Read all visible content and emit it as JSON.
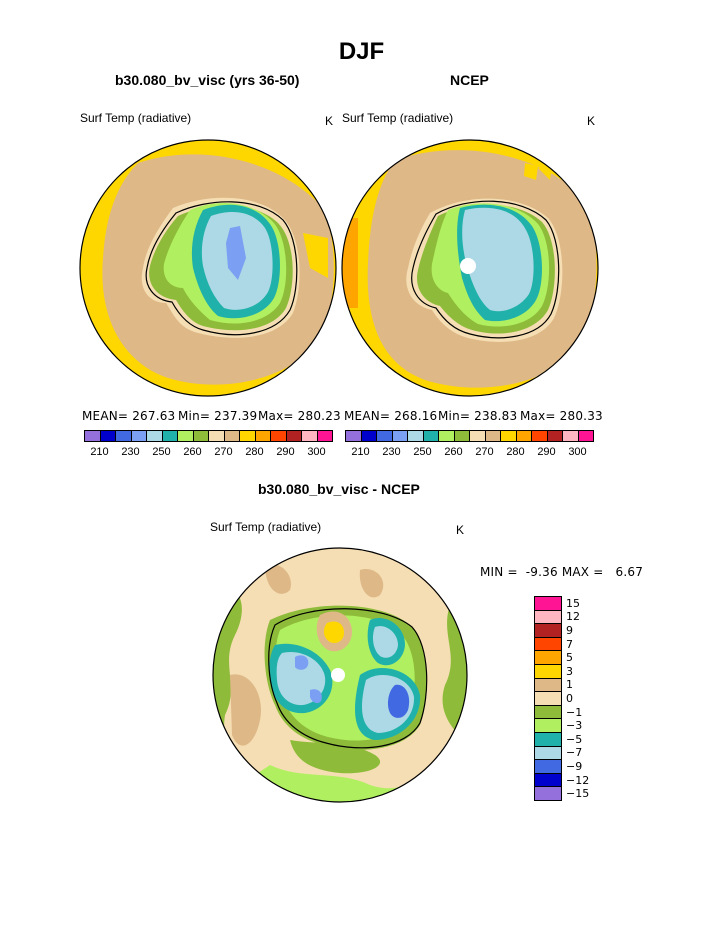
{
  "title": "DJF",
  "panels": {
    "model": {
      "title": "b30.080_bv_visc (yrs 36-50)",
      "field": "Surf Temp (radiative)",
      "units": "K",
      "mean_label": "MEAN= 267.63",
      "min_label": "Min= 237.39",
      "max_label": "Max= 280.23"
    },
    "obs": {
      "title": "NCEP",
      "field": "Surf Temp (radiative)",
      "units": "K",
      "mean_label": "MEAN= 268.16",
      "min_label": "Min= 238.83",
      "max_label": "Max= 280.33"
    },
    "diff": {
      "title": "b30.080_bv_visc - NCEP",
      "field": "Surf Temp (radiative)",
      "units": "K",
      "minmax_label": "MIN =  -9.36 MAX =   6.67"
    }
  },
  "colors": {
    "abs_scale": [
      "#9370db",
      "#0000cd",
      "#4169e1",
      "#7b9ff2",
      "#add8e6",
      "#20b2aa",
      "#b0f060",
      "#8ebc3a",
      "#f5deb3",
      "#deb887",
      "#ffd700",
      "#ffa500",
      "#ff4500",
      "#b22222",
      "#ffb6c1",
      "#ff1493"
    ],
    "diff_scale": [
      "#9370db",
      "#0000cd",
      "#4169e1",
      "#add8e6",
      "#20b2aa",
      "#b0f060",
      "#8ebc3a",
      "#f5deb3",
      "#deb887",
      "#ffd700",
      "#ffa500",
      "#ff4500",
      "#b22222",
      "#ffb6c1",
      "#ff1493"
    ]
  },
  "chart_data": [
    {
      "type": "heatmap",
      "title": "b30.080_bv_visc (yrs 36-50)",
      "subtitle": "Surf Temp (radiative)",
      "units": "K",
      "mean": 267.63,
      "min": 237.39,
      "max": 280.23,
      "contour_levels": [
        210,
        220,
        230,
        240,
        250,
        255,
        260,
        265,
        270,
        275,
        280,
        285,
        290,
        295,
        300
      ],
      "colorbar_tick_labels": [
        "210",
        "230",
        "250",
        "260",
        "270",
        "280",
        "290",
        "300"
      ]
    },
    {
      "type": "heatmap",
      "title": "NCEP",
      "subtitle": "Surf Temp (radiative)",
      "units": "K",
      "mean": 268.16,
      "min": 238.83,
      "max": 280.33,
      "contour_levels": [
        210,
        220,
        230,
        240,
        250,
        255,
        260,
        265,
        270,
        275,
        280,
        285,
        290,
        295,
        300
      ],
      "colorbar_tick_labels": [
        "210",
        "230",
        "250",
        "260",
        "270",
        "280",
        "290",
        "300"
      ]
    },
    {
      "type": "heatmap",
      "title": "b30.080_bv_visc - NCEP",
      "subtitle": "Surf Temp (radiative)",
      "units": "K",
      "min": -9.36,
      "max": 6.67,
      "contour_levels": [
        -15,
        -12,
        -9,
        -7,
        -5,
        -3,
        -1,
        0,
        1,
        3,
        5,
        7,
        9,
        12,
        15
      ],
      "colorbar_tick_labels": [
        "15",
        "12",
        "9",
        "7",
        "5",
        "3",
        "1",
        "0",
        "−1",
        "−3",
        "−5",
        "−7",
        "−9",
        "−12",
        "−15"
      ]
    }
  ]
}
